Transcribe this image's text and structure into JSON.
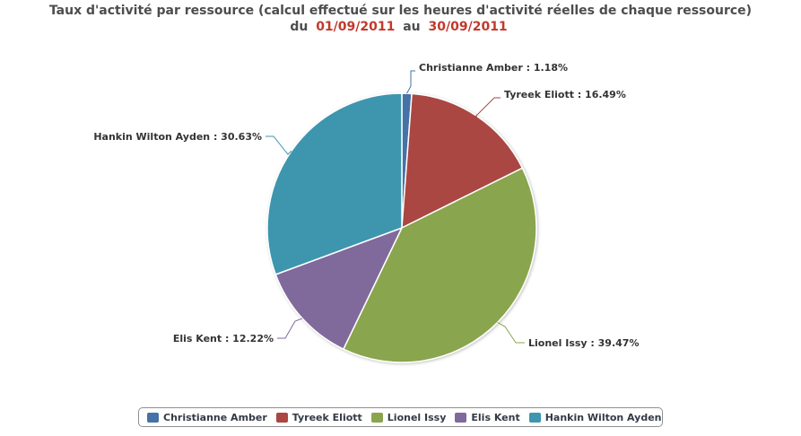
{
  "chart_data": {
    "type": "pie",
    "title": {
      "line1": "Taux d'activité par ressource (calcul effectué sur les heures d'activité réelles de chaque ressource)",
      "du": "du",
      "start_date": "01/09/2011",
      "au": "au",
      "end_date": "30/09/2011"
    },
    "slices": [
      {
        "name": "Christianne Amber",
        "value": 1.18,
        "label": "Christianne Amber : 1.18%",
        "color": "#4572a7"
      },
      {
        "name": "Tyreek Eliott",
        "value": 16.49,
        "label": "Tyreek Eliott : 16.49%",
        "color": "#aa4643"
      },
      {
        "name": "Lionel Issy",
        "value": 39.47,
        "label": "Lionel Issy : 39.47%",
        "color": "#89a54e"
      },
      {
        "name": "Elis Kent",
        "value": 12.22,
        "label": "Elis Kent : 12.22%",
        "color": "#80699b"
      },
      {
        "name": "Hankin Wilton Ayden",
        "value": 30.63,
        "label": "Hankin Wilton Ayden : 30.63%",
        "color": "#3d96ae"
      }
    ],
    "legend_position": "bottom-center"
  }
}
